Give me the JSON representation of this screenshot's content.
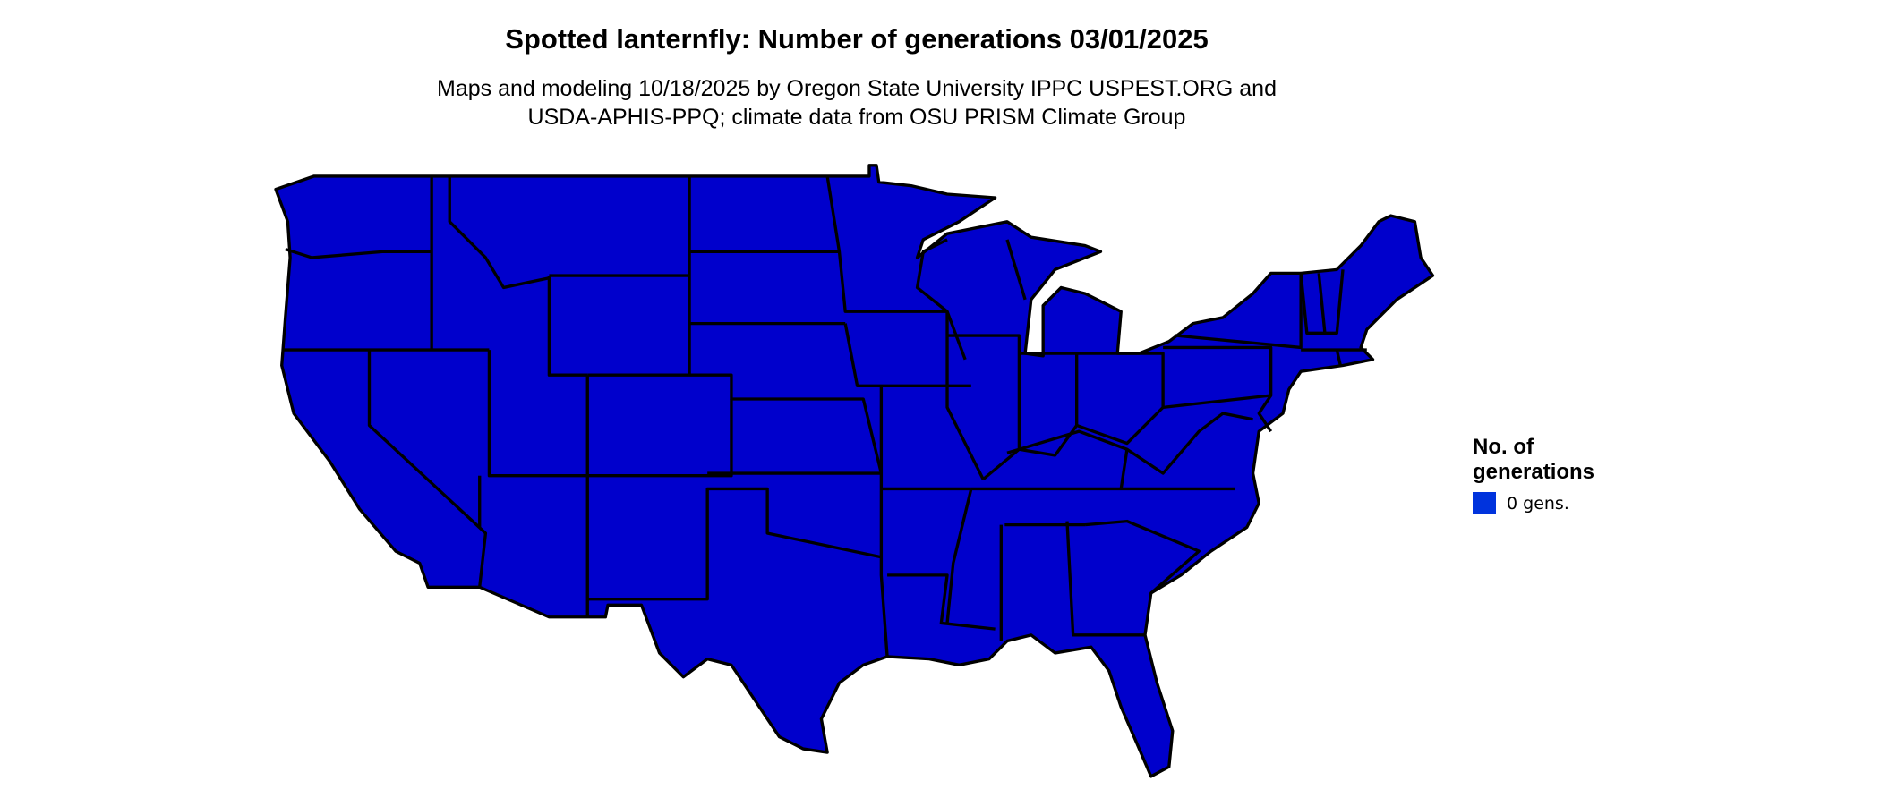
{
  "title": "Spotted lanternfly: Number of generations 03/01/2025",
  "subtitle": [
    "Maps and modeling 10/18/2025 by Oregon State University IPPC USPEST.ORG and",
    "USDA-APHIS-PPQ; climate data from OSU PRISM Climate Group"
  ],
  "map": {
    "region": "Contiguous United States",
    "fill_color": "#0000CC",
    "border_color": "#000000"
  },
  "legend": {
    "title": "No. of generations",
    "items": [
      {
        "label": "0 gens.",
        "color": "#0033DD"
      }
    ]
  }
}
